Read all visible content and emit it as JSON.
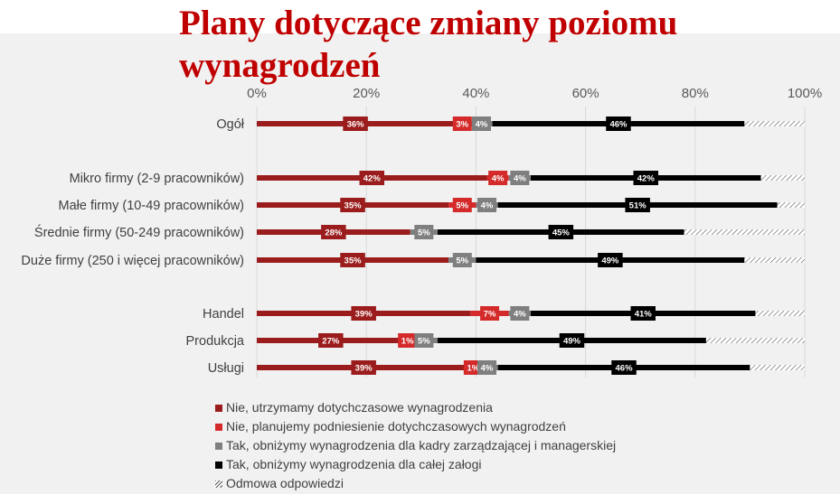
{
  "header": {
    "title_line1": "Plany dotyczące zmiany poziomu",
    "title_line2": "wynagrodzeń"
  },
  "chart_data": {
    "type": "bar",
    "orientation": "horizontal",
    "stacked": true,
    "xlim": [
      0,
      100
    ],
    "x_ticks": [
      "0%",
      "20%",
      "40%",
      "60%",
      "80%",
      "100%"
    ],
    "grid": true,
    "legend_position": "bottom-left",
    "categories": [
      "Ogół",
      "Mikro firmy (2-9 pracowników)",
      "Małe firmy (10-49 pracowników)",
      "Średnie firmy (50-249 pracowników)",
      "Duże firmy (250 i więcej pracowników)",
      "Handel",
      "Produkcja",
      "Usługi"
    ],
    "series": [
      {
        "name": "Nie, utrzymamy dotychczasowe wynagrodzenia",
        "color": "#9b1c1c",
        "values": [
          36,
          42,
          35,
          28,
          35,
          39,
          27,
          39
        ],
        "labels": [
          "36%",
          "42%",
          "35%",
          "28%",
          "35%",
          "39%",
          "27%",
          "39%"
        ]
      },
      {
        "name": "Nie, planujemy podniesienie dotychczasowych wynagrodzeń",
        "color": "#d42a2a",
        "values": [
          3,
          4,
          5,
          0,
          0,
          7,
          1,
          1
        ],
        "labels": [
          "3%",
          "4%",
          "5%",
          "",
          "",
          "7%",
          "1%",
          "1%"
        ]
      },
      {
        "name": "Tak, obniżymy wynagrodzenia dla kadry zarządzającej i managerskiej",
        "color": "#7f7f7f",
        "values": [
          4,
          4,
          4,
          5,
          5,
          4,
          5,
          4
        ],
        "labels": [
          "4%",
          "4%",
          "4%",
          "5%",
          "5%",
          "4%",
          "5%",
          "4%"
        ]
      },
      {
        "name": "Tak, obniżymy wynagrodzenia dla całej załogi",
        "color": "#000000",
        "values": [
          46,
          42,
          51,
          45,
          49,
          41,
          49,
          46
        ],
        "labels": [
          "46%",
          "42%",
          "51%",
          "45%",
          "49%",
          "41%",
          "49%",
          "46%"
        ]
      },
      {
        "name": "Odmowa odpowiedzi",
        "color": "hatched",
        "values": [
          11,
          8,
          5,
          22,
          11,
          9,
          18,
          10
        ],
        "labels": [
          "",
          "",
          "",
          "",
          "",
          "",
          "",
          ""
        ]
      }
    ]
  }
}
